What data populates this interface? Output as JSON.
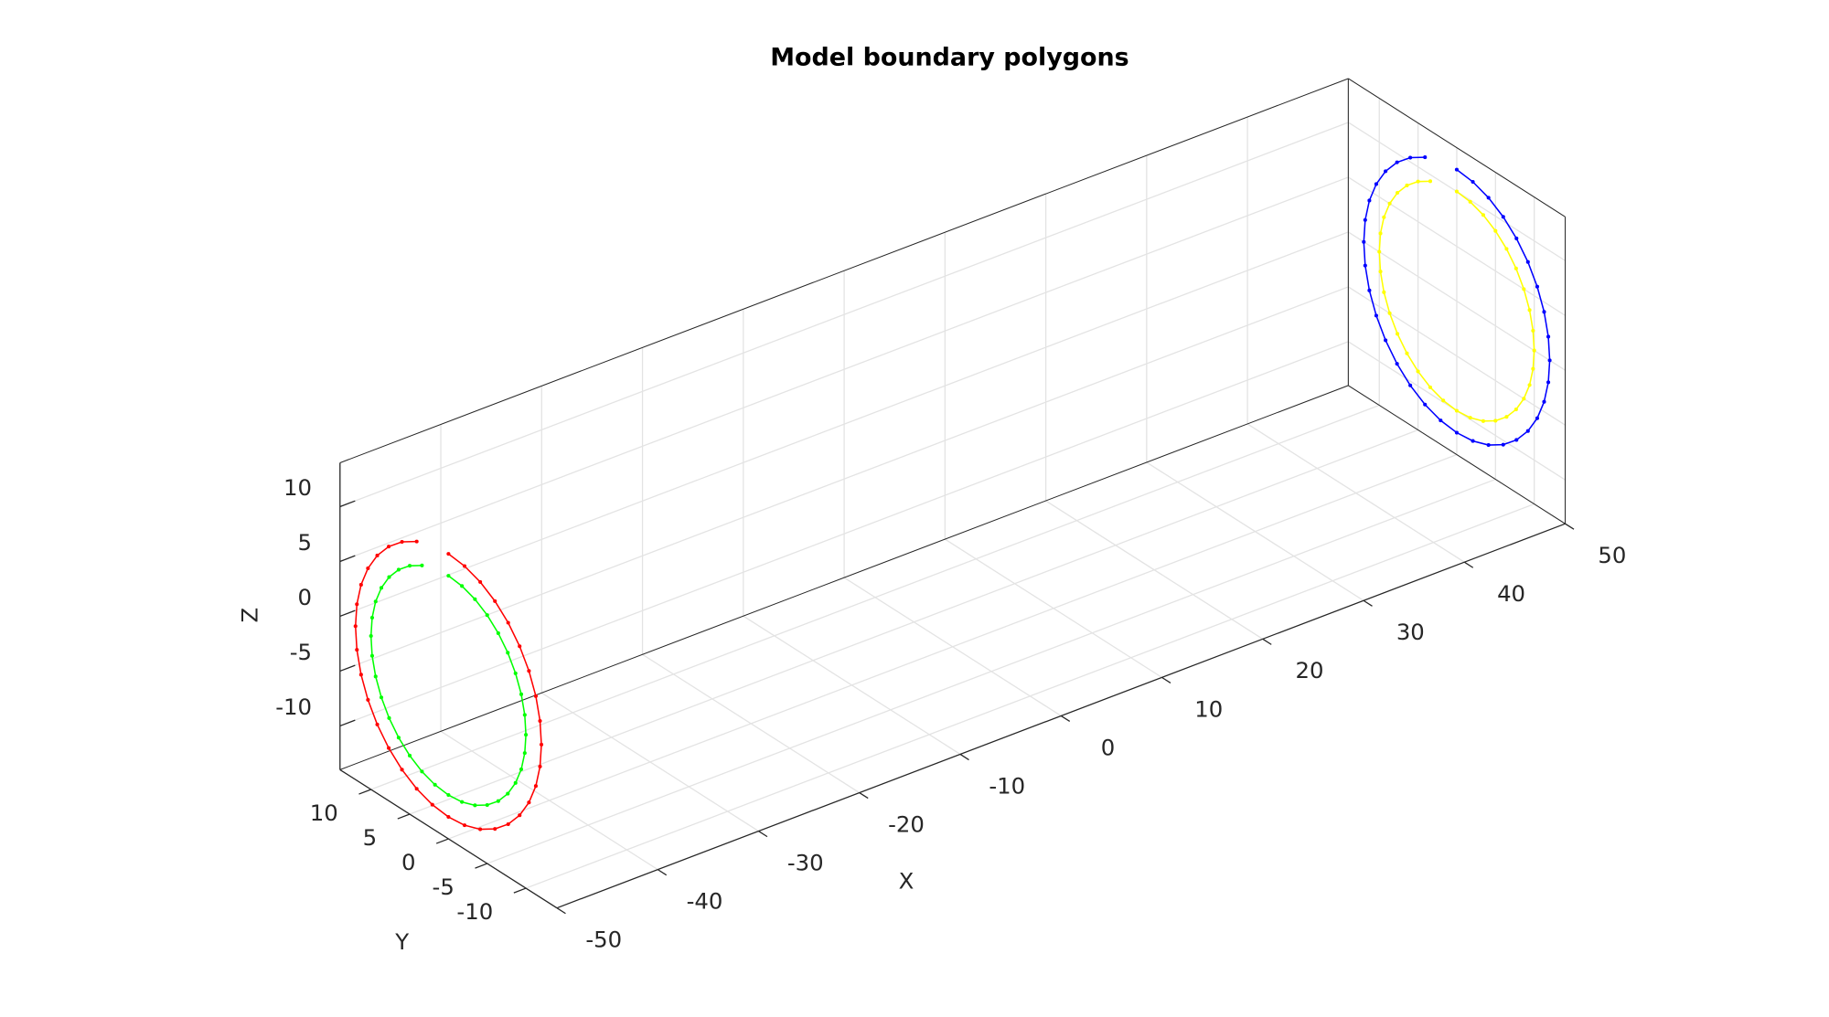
{
  "chart_data": {
    "type": "line3d",
    "title": "Model boundary polygons",
    "xlabel": "X",
    "ylabel": "Y",
    "zlabel": "Z",
    "xlim": [
      -50,
      50
    ],
    "ylim": [
      -14,
      14
    ],
    "zlim": [
      -14,
      14
    ],
    "xticks": [
      -50,
      -40,
      -30,
      -20,
      -10,
      0,
      10,
      20,
      30,
      40,
      50
    ],
    "yticks": [
      -10,
      -5,
      0,
      5,
      10
    ],
    "zticks": [
      -10,
      -5,
      0,
      5,
      10
    ],
    "grid": true,
    "marker": ".",
    "series": [
      {
        "color": "#ff0000",
        "x": -50,
        "y": [
          0,
          -2.08,
          -4.1,
          -6,
          -7.71,
          -9.19,
          -10.39,
          -11.28,
          -11.82,
          -12,
          -11.82,
          -11.28,
          -10.39,
          -9.19,
          -7.71,
          -6,
          -4.1,
          -2.08,
          0,
          2.08,
          4.1,
          6,
          7.71,
          9.19,
          10.39,
          11.28,
          11.82,
          12,
          11.82,
          11.28,
          10.39,
          9.19,
          7.71,
          6,
          4.1
        ],
        "z": [
          12,
          11.82,
          11.28,
          10.39,
          9.19,
          7.71,
          6,
          4.1,
          2.08,
          0,
          -2.08,
          -4.1,
          -6,
          -7.71,
          -9.19,
          -10.39,
          -11.28,
          -11.82,
          -12,
          -11.82,
          -11.28,
          -10.39,
          -9.19,
          -7.71,
          -6,
          -4.1,
          -2.08,
          0,
          2.08,
          4.1,
          6,
          7.71,
          9.19,
          10.39,
          11.28
        ]
      },
      {
        "color": "#00ff00",
        "x": -50,
        "y": [
          0,
          -1.74,
          -3.42,
          -5,
          -6.43,
          -7.66,
          -8.66,
          -9.4,
          -9.85,
          -10,
          -9.85,
          -9.4,
          -8.66,
          -7.66,
          -6.43,
          -5,
          -3.42,
          -1.74,
          0,
          1.74,
          3.42,
          5,
          6.43,
          7.66,
          8.66,
          9.4,
          9.85,
          10,
          9.85,
          9.4,
          8.66,
          7.66,
          6.43,
          5,
          3.42
        ],
        "z": [
          10,
          9.85,
          9.4,
          8.66,
          7.66,
          6.43,
          5,
          3.42,
          1.74,
          0,
          -1.74,
          -3.42,
          -5,
          -6.43,
          -7.66,
          -8.66,
          -9.4,
          -9.85,
          -10,
          -9.85,
          -9.4,
          -8.66,
          -7.66,
          -6.43,
          -5,
          -3.42,
          -1.74,
          0,
          1.74,
          3.42,
          5,
          6.43,
          7.66,
          8.66,
          9.4
        ]
      },
      {
        "color": "#0000ff",
        "x": 50,
        "y": [
          0,
          -2.08,
          -4.1,
          -6,
          -7.71,
          -9.19,
          -10.39,
          -11.28,
          -11.82,
          -12,
          -11.82,
          -11.28,
          -10.39,
          -9.19,
          -7.71,
          -6,
          -4.1,
          -2.08,
          0,
          2.08,
          4.1,
          6,
          7.71,
          9.19,
          10.39,
          11.28,
          11.82,
          12,
          11.82,
          11.28,
          10.39,
          9.19,
          7.71,
          6,
          4.1
        ],
        "z": [
          12,
          11.82,
          11.28,
          10.39,
          9.19,
          7.71,
          6,
          4.1,
          2.08,
          0,
          -2.08,
          -4.1,
          -6,
          -7.71,
          -9.19,
          -10.39,
          -11.28,
          -11.82,
          -12,
          -11.82,
          -11.28,
          -10.39,
          -9.19,
          -7.71,
          -6,
          -4.1,
          -2.08,
          0,
          2.08,
          4.1,
          6,
          7.71,
          9.19,
          10.39,
          11.28
        ]
      },
      {
        "color": "#ffff00",
        "x": 50,
        "y": [
          0,
          -1.74,
          -3.42,
          -5,
          -6.43,
          -7.66,
          -8.66,
          -9.4,
          -9.85,
          -10,
          -9.85,
          -9.4,
          -8.66,
          -7.66,
          -6.43,
          -5,
          -3.42,
          -1.74,
          0,
          1.74,
          3.42,
          5,
          6.43,
          7.66,
          8.66,
          9.4,
          9.85,
          10,
          9.85,
          9.4,
          8.66,
          7.66,
          6.43,
          5,
          3.42
        ],
        "z": [
          10,
          9.85,
          9.4,
          8.66,
          7.66,
          6.43,
          5,
          3.42,
          1.74,
          0,
          -1.74,
          -3.42,
          -5,
          -6.43,
          -7.66,
          -8.66,
          -9.4,
          -9.85,
          -10,
          -9.85,
          -9.4,
          -8.66,
          -7.66,
          -6.43,
          -5,
          -3.42,
          -1.74,
          0,
          1.74,
          3.42,
          5,
          6.43,
          7.66,
          8.66,
          9.4
        ]
      }
    ]
  }
}
